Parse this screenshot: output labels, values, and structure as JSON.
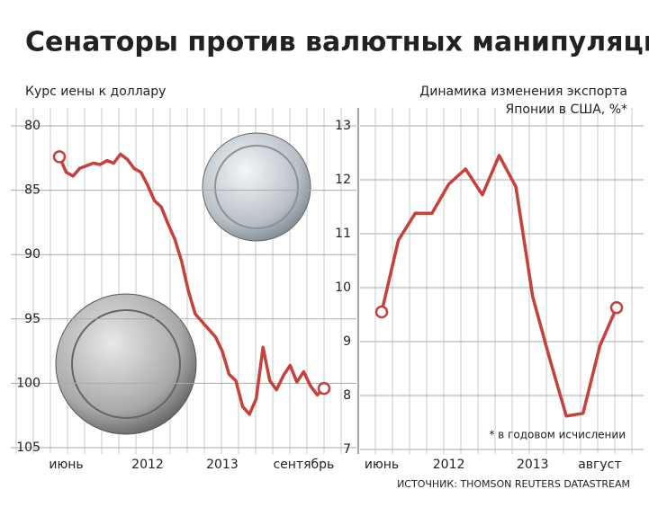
{
  "title": "Сенаторы против валютных манипуляций",
  "source": "ИСТОЧНИК: THOMSON REUTERS DATASTREAM",
  "chart_data": [
    {
      "type": "line",
      "title": "Курс иены к доллару",
      "color": "#c8403a",
      "categories": [
        null,
        "июнь",
        null,
        null,
        null,
        null,
        null,
        null,
        null,
        null,
        null,
        null,
        null,
        "2012",
        null,
        null,
        null,
        null,
        null,
        null,
        null,
        null,
        null,
        null,
        "2013",
        null,
        null,
        null,
        null,
        null,
        null,
        null,
        null,
        null,
        null,
        null,
        "сентябрь",
        null,
        null,
        null
      ],
      "values": [
        82.4,
        83.6,
        83.9,
        83.3,
        83.1,
        82.9,
        83.0,
        82.7,
        82.9,
        82.2,
        82.6,
        83.3,
        83.6,
        84.6,
        85.8,
        86.3,
        87.6,
        88.8,
        90.5,
        92.8,
        94.6,
        95.2,
        95.8,
        96.4,
        97.5,
        99.3,
        99.8,
        101.8,
        102.4,
        101.2,
        97.2,
        99.8,
        100.5,
        99.4,
        98.6,
        99.9,
        99.1,
        100.2,
        100.9,
        100.4
      ],
      "ylim": [
        80,
        105
      ],
      "yticks": [
        80,
        85,
        90,
        95,
        100,
        105
      ],
      "y_inverted": true,
      "grid": true
    },
    {
      "type": "line",
      "title": [
        "Динамика изменения экспорта",
        "Японии в США, %*"
      ],
      "color": "#c8403a",
      "categories": [
        "июнь",
        null,
        null,
        null,
        "2012",
        null,
        null,
        null,
        null,
        "2013",
        null,
        null,
        null,
        "август",
        null
      ],
      "values": [
        9.55,
        10.88,
        11.38,
        11.38,
        11.92,
        12.2,
        11.72,
        12.45,
        11.87,
        9.83,
        8.7,
        7.62,
        7.67,
        8.92,
        9.63
      ],
      "ylim": [
        7,
        13
      ],
      "yticks": [
        7,
        8,
        9,
        10,
        11,
        12,
        13
      ],
      "y_inverted": false,
      "grid": true,
      "note": "* в годовом исчислении"
    }
  ]
}
